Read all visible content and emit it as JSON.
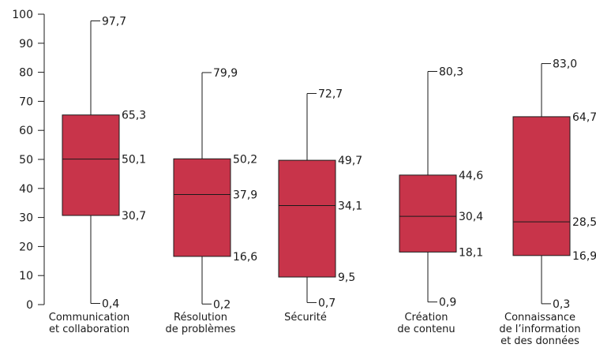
{
  "chart_data": {
    "type": "boxplot",
    "title": "",
    "xlabel": "",
    "ylabel": "",
    "ylim": [
      0,
      100
    ],
    "yticks": [
      "0",
      "10",
      "20",
      "30",
      "40",
      "50",
      "60",
      "70",
      "80",
      "90",
      "100"
    ],
    "grid": false,
    "legend": "none",
    "box_color": "#c8344a",
    "categories": [
      {
        "lines": [
          "Communication",
          "et collaboration"
        ],
        "min": 0.4,
        "q1": 30.7,
        "median": 50.1,
        "q3": 65.3,
        "max": 97.7,
        "labels": {
          "min": "0,4",
          "q1": "30,7",
          "median": "50,1",
          "q3": "65,3",
          "max": "97,7"
        }
      },
      {
        "lines": [
          "Résolution",
          "de problèmes"
        ],
        "min": 0.2,
        "q1": 16.6,
        "median": 37.9,
        "q3": 50.2,
        "max": 79.9,
        "labels": {
          "min": "0,2",
          "q1": "16,6",
          "median": "37,9",
          "q3": "50,2",
          "max": "79,9"
        }
      },
      {
        "lines": [
          "Sécurité"
        ],
        "min": 0.7,
        "q1": 9.5,
        "median": 34.1,
        "q3": 49.7,
        "max": 72.7,
        "labels": {
          "min": "0,7",
          "q1": "9,5",
          "median": "34,1",
          "q3": "49,7",
          "max": "72,7"
        }
      },
      {
        "lines": [
          "Création",
          "de contenu"
        ],
        "min": 0.9,
        "q1": 18.1,
        "median": 30.4,
        "q3": 44.6,
        "max": 80.3,
        "labels": {
          "min": "0,9",
          "q1": "18,1",
          "median": "30,4",
          "q3": "44,6",
          "max": "80,3"
        }
      },
      {
        "lines": [
          "Connaissance",
          "de l’information",
          "et des données"
        ],
        "min": 0.3,
        "q1": 16.9,
        "median": 28.5,
        "q3": 64.7,
        "max": 83.0,
        "labels": {
          "min": "0,3",
          "q1": "16,9",
          "median": "28,5",
          "q3": "64,7",
          "max": "83,0"
        }
      }
    ]
  }
}
